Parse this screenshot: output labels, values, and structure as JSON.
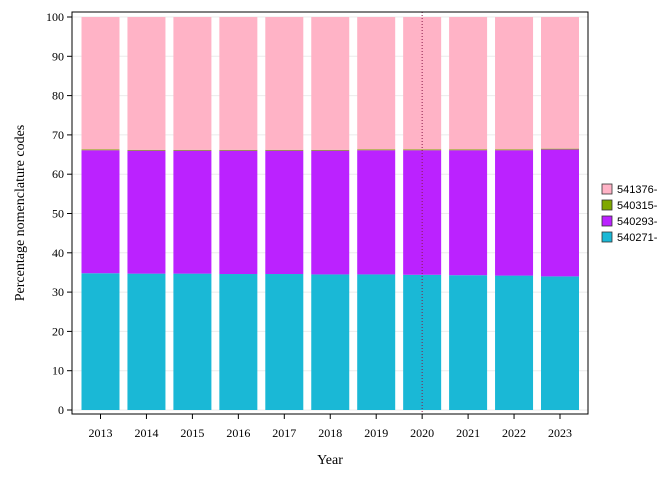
{
  "chart_data": {
    "type": "bar",
    "stacked": true,
    "xlabel": "Year",
    "ylabel": "Percentage nomenclature codes",
    "categories": [
      "2013",
      "2014",
      "2015",
      "2016",
      "2017",
      "2018",
      "2019",
      "2020",
      "2021",
      "2022",
      "2023"
    ],
    "ylim": [
      0,
      100
    ],
    "yticks": [
      0,
      10,
      20,
      30,
      40,
      50,
      60,
      70,
      80,
      90,
      100
    ],
    "grid": true,
    "legend_position": "right",
    "reference_line": {
      "x": "2020",
      "style": "dotted",
      "color": "#8B1A4A"
    },
    "series": [
      {
        "name": "540271-",
        "color": "#1AB8D6",
        "values": [
          34.8,
          34.7,
          34.7,
          34.6,
          34.6,
          34.5,
          34.5,
          34.4,
          34.3,
          34.2,
          34.0
        ]
      },
      {
        "name": "540293-",
        "color": "#BB22FF",
        "values": [
          31.3,
          31.3,
          31.3,
          31.4,
          31.4,
          31.5,
          31.6,
          31.7,
          31.8,
          31.9,
          32.3
        ]
      },
      {
        "name": "540315-",
        "color": "#7FA800",
        "values": [
          0.2,
          0.2,
          0.2,
          0.2,
          0.2,
          0.2,
          0.2,
          0.2,
          0.2,
          0.2,
          0.2
        ]
      },
      {
        "name": "541376-",
        "color": "#FFB3C6",
        "values": [
          33.7,
          33.8,
          33.8,
          33.8,
          33.8,
          33.8,
          33.7,
          33.7,
          33.7,
          33.7,
          33.5
        ]
      }
    ],
    "legend_order": [
      "541376-",
      "540315-",
      "540293-",
      "540271-"
    ]
  }
}
